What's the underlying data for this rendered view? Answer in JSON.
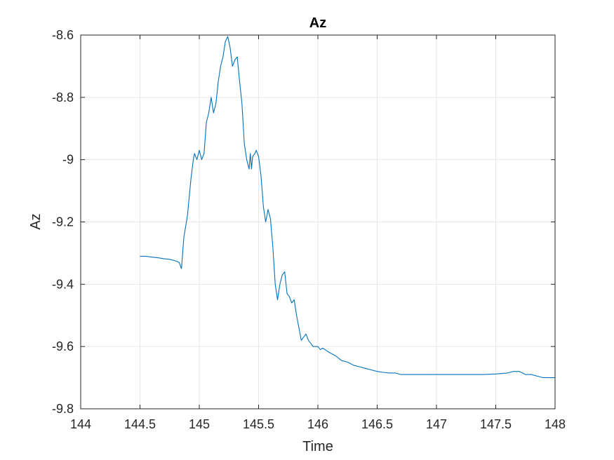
{
  "chart_data": {
    "type": "line",
    "title": "Az",
    "xlabel": "Time",
    "ylabel": "Az",
    "xlim": [
      144,
      148
    ],
    "ylim": [
      -9.8,
      -8.6
    ],
    "xticks": [
      144,
      144.5,
      145,
      145.5,
      146,
      146.5,
      147,
      147.5,
      148
    ],
    "xtick_labels": [
      "144",
      "144.5",
      "145",
      "145.5",
      "146",
      "146.5",
      "147",
      "147.5",
      "148"
    ],
    "yticks": [
      -9.8,
      -9.6,
      -9.4,
      -9.2,
      -9.0,
      -8.8,
      -8.6
    ],
    "ytick_labels": [
      "-9.8",
      "-9.6",
      "-9.4",
      "-9.2",
      "-9",
      "-8.8",
      "-8.6"
    ],
    "grid": true,
    "legend": "none",
    "colors": {
      "series": "#0072BD",
      "grid": "#e6e6e6",
      "axis": "#262626"
    },
    "series": [
      {
        "x": [
          144.5,
          144.55,
          144.6,
          144.65,
          144.7,
          144.75,
          144.8,
          144.83,
          144.84,
          144.85,
          144.87,
          144.9,
          144.93,
          144.95,
          144.96,
          144.98,
          145.0,
          145.02,
          145.04,
          145.06,
          145.08,
          145.1,
          145.12,
          145.14,
          145.16,
          145.18,
          145.2,
          145.22,
          145.24,
          145.26,
          145.28,
          145.3,
          145.32,
          145.34,
          145.36,
          145.38,
          145.4,
          145.42,
          145.43,
          145.44,
          145.45,
          145.47,
          145.48,
          145.5,
          145.52,
          145.54,
          145.56,
          145.58,
          145.6,
          145.62,
          145.64,
          145.66,
          145.68,
          145.7,
          145.72,
          145.74,
          145.76,
          145.78,
          145.8,
          145.82,
          145.84,
          145.86,
          145.88,
          145.9,
          145.92,
          145.94,
          145.96,
          145.98,
          146.0,
          146.02,
          146.04,
          146.06,
          146.08,
          146.1,
          146.15,
          146.2,
          146.25,
          146.3,
          146.35,
          146.4,
          146.45,
          146.5,
          146.55,
          146.6,
          146.65,
          146.7,
          146.8,
          146.9,
          147.0,
          147.1,
          147.2,
          147.3,
          147.4,
          147.5,
          147.6,
          147.65,
          147.7,
          147.75,
          147.8,
          147.85,
          147.9,
          148.0
        ],
        "y": [
          -9.31,
          -9.31,
          -9.313,
          -9.315,
          -9.318,
          -9.32,
          -9.325,
          -9.33,
          -9.34,
          -9.35,
          -9.25,
          -9.18,
          -9.06,
          -9.0,
          -8.98,
          -9.0,
          -8.97,
          -9.0,
          -8.98,
          -8.88,
          -8.85,
          -8.8,
          -8.85,
          -8.82,
          -8.75,
          -8.7,
          -8.67,
          -8.62,
          -8.605,
          -8.64,
          -8.7,
          -8.68,
          -8.67,
          -8.75,
          -8.82,
          -8.95,
          -9.0,
          -9.03,
          -8.98,
          -9.03,
          -8.99,
          -8.98,
          -8.97,
          -8.99,
          -9.05,
          -9.15,
          -9.2,
          -9.16,
          -9.19,
          -9.28,
          -9.4,
          -9.45,
          -9.4,
          -9.37,
          -9.36,
          -9.43,
          -9.44,
          -9.46,
          -9.45,
          -9.5,
          -9.54,
          -9.58,
          -9.57,
          -9.56,
          -9.58,
          -9.59,
          -9.6,
          -9.6,
          -9.6,
          -9.61,
          -9.605,
          -9.61,
          -9.615,
          -9.62,
          -9.63,
          -9.645,
          -9.65,
          -9.66,
          -9.665,
          -9.67,
          -9.675,
          -9.68,
          -9.683,
          -9.685,
          -9.685,
          -9.69,
          -9.69,
          -9.69,
          -9.69,
          -9.69,
          -9.69,
          -9.69,
          -9.69,
          -9.688,
          -9.685,
          -9.68,
          -9.68,
          -9.69,
          -9.69,
          -9.695,
          -9.7,
          -9.7
        ]
      }
    ]
  }
}
